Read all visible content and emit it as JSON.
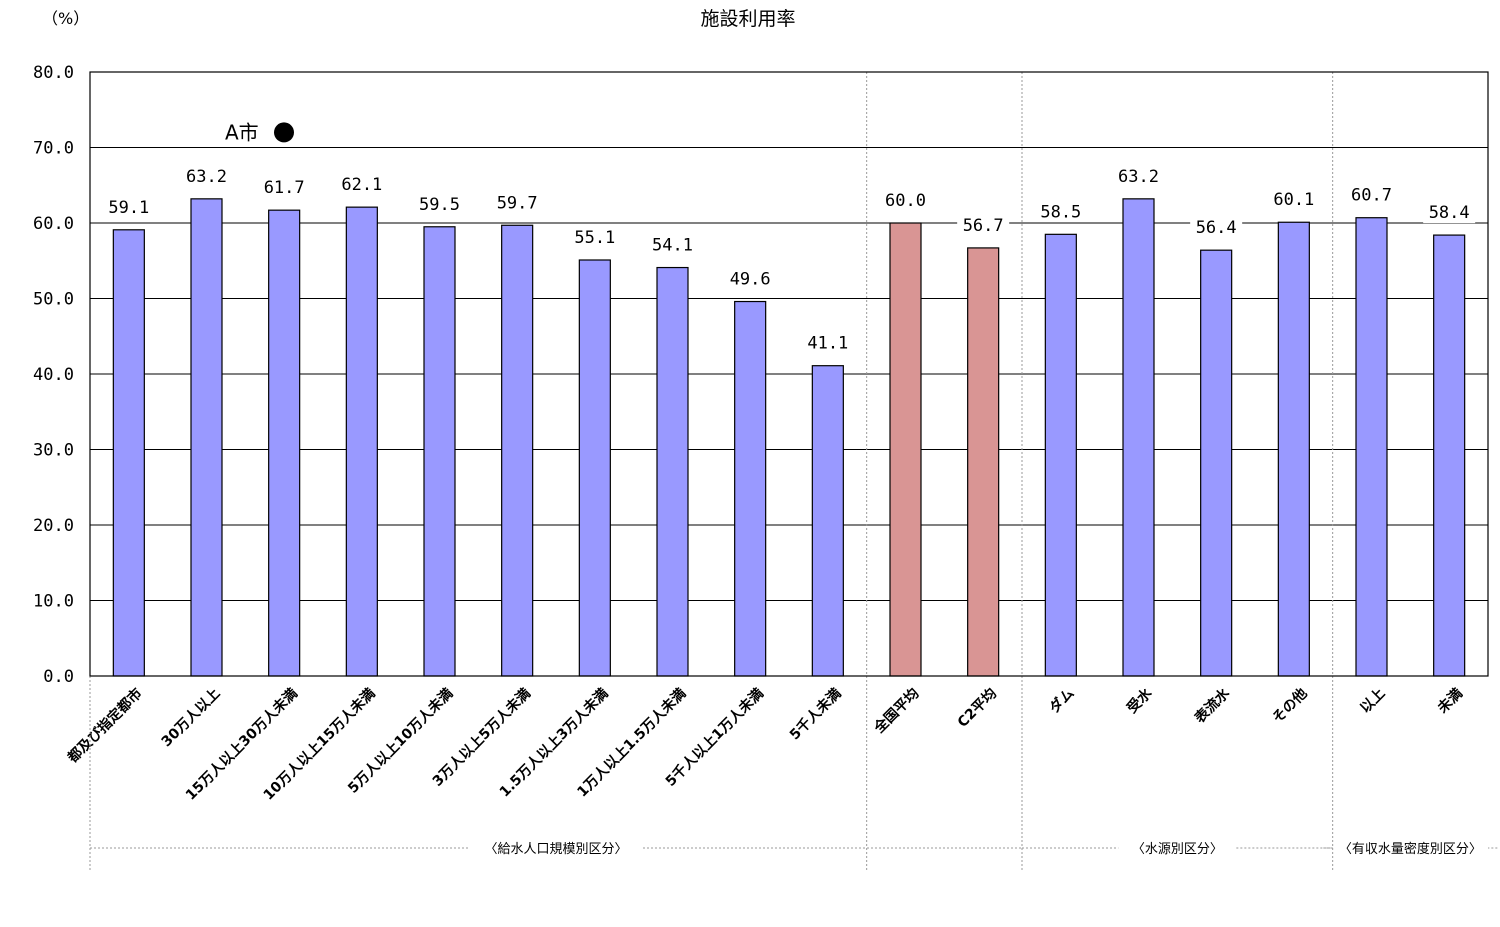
{
  "chart_data": {
    "type": "bar",
    "title": "施設利用率",
    "ylabel": "（%）",
    "ylim": [
      0,
      80
    ],
    "yticks": [
      "0.0",
      "10.0",
      "20.0",
      "30.0",
      "40.0",
      "50.0",
      "60.0",
      "70.0",
      "80.0"
    ],
    "grid": true,
    "categories": [
      "都及び指定都市",
      "30万人以上",
      "15万人以上30万人未満",
      "10万人以上15万人未満",
      "5万人以上10万人未満",
      "3万人以上5万人未満",
      "1.5万人以上3万人未満",
      "1万人以上1.5万人未満",
      "5千人以上1万人未満",
      "5千人未満",
      "全国平均",
      "C2平均",
      "ダム",
      "受水",
      "表流水",
      "その他",
      "以上",
      "未満"
    ],
    "values": [
      59.1,
      63.2,
      61.7,
      62.1,
      59.5,
      59.7,
      55.1,
      54.1,
      49.6,
      41.1,
      60.0,
      56.7,
      58.5,
      63.2,
      56.4,
      60.1,
      60.7,
      58.4
    ],
    "value_labels": [
      "59.1",
      "63.2",
      "61.7",
      "62.1",
      "59.5",
      "59.7",
      "55.1",
      "54.1",
      "49.6",
      "41.1",
      "60.0",
      "56.7",
      "58.5",
      "63.2",
      "56.4",
      "60.1",
      "60.7",
      "58.4"
    ],
    "highlight_indices": [
      10,
      11
    ],
    "colors": {
      "bar": "#9999ff",
      "highlight": "#d99594",
      "outline": "#000000"
    },
    "groups": [
      {
        "label": "〈給水人口規模別区分〉",
        "start": 0,
        "end": 11
      },
      {
        "label": "〈水源別区分〉",
        "start": 12,
        "end": 15
      },
      {
        "label": "〈有収水量密度別区分〉",
        "start": 16,
        "end": 17
      }
    ],
    "marker": {
      "label": "A市",
      "value": 72.0,
      "symbol": "●"
    }
  }
}
